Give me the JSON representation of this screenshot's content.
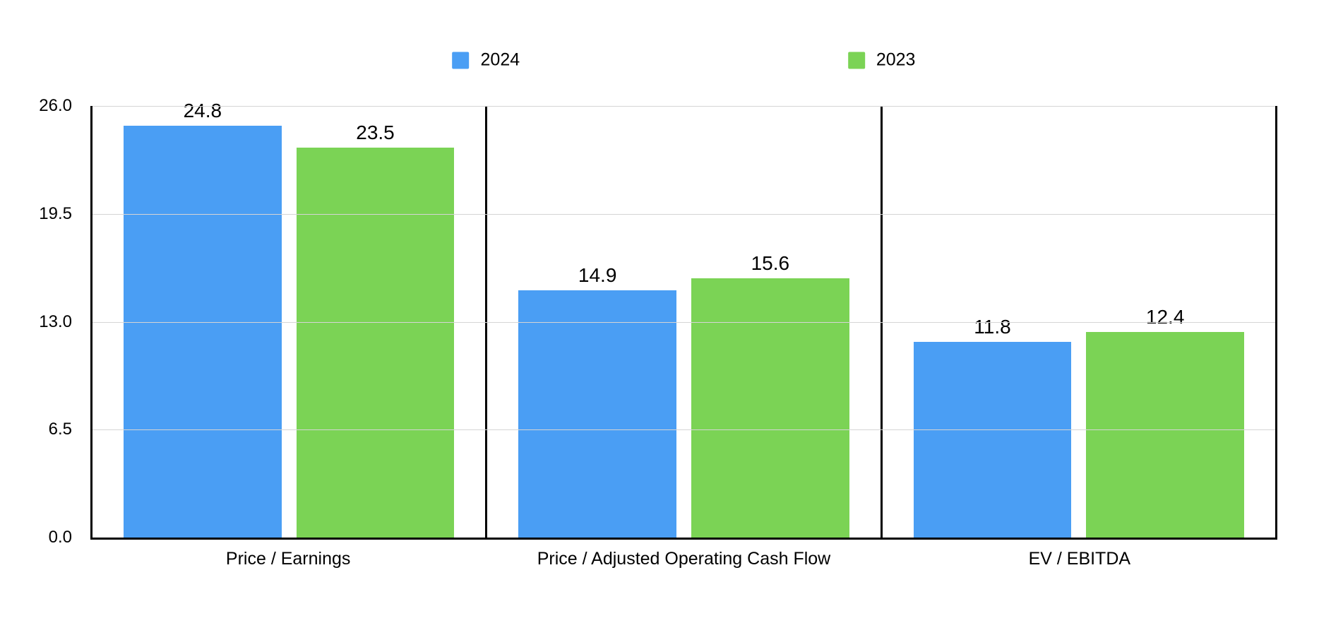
{
  "chart_data": {
    "type": "bar",
    "title": "",
    "categories": [
      "Price / Earnings",
      "Price / Adjusted Operating Cash Flow",
      "EV / EBITDA"
    ],
    "series": [
      {
        "name": "2024",
        "color": "#4A9EF4",
        "values": [
          24.8,
          14.9,
          11.8
        ]
      },
      {
        "name": "2023",
        "color": "#7BD355",
        "values": [
          23.5,
          15.6,
          12.4
        ]
      }
    ],
    "data_labels": [
      [
        "24.8",
        "14.9",
        "11.8"
      ],
      [
        "23.5",
        "15.6",
        "12.4"
      ]
    ],
    "ylim": [
      0,
      26
    ],
    "yticks": [
      {
        "value": 0,
        "label": "0.0"
      },
      {
        "value": 6.5,
        "label": "6.5"
      },
      {
        "value": 13,
        "label": "13.0"
      },
      {
        "value": 19.5,
        "label": "19.5"
      },
      {
        "value": 26,
        "label": "26.0"
      }
    ],
    "grid": true,
    "legend_position": "top",
    "colors": {
      "background": "#ffffff",
      "axis": "#000000",
      "gridline": "#d5d5d5",
      "text": "#000000"
    }
  }
}
